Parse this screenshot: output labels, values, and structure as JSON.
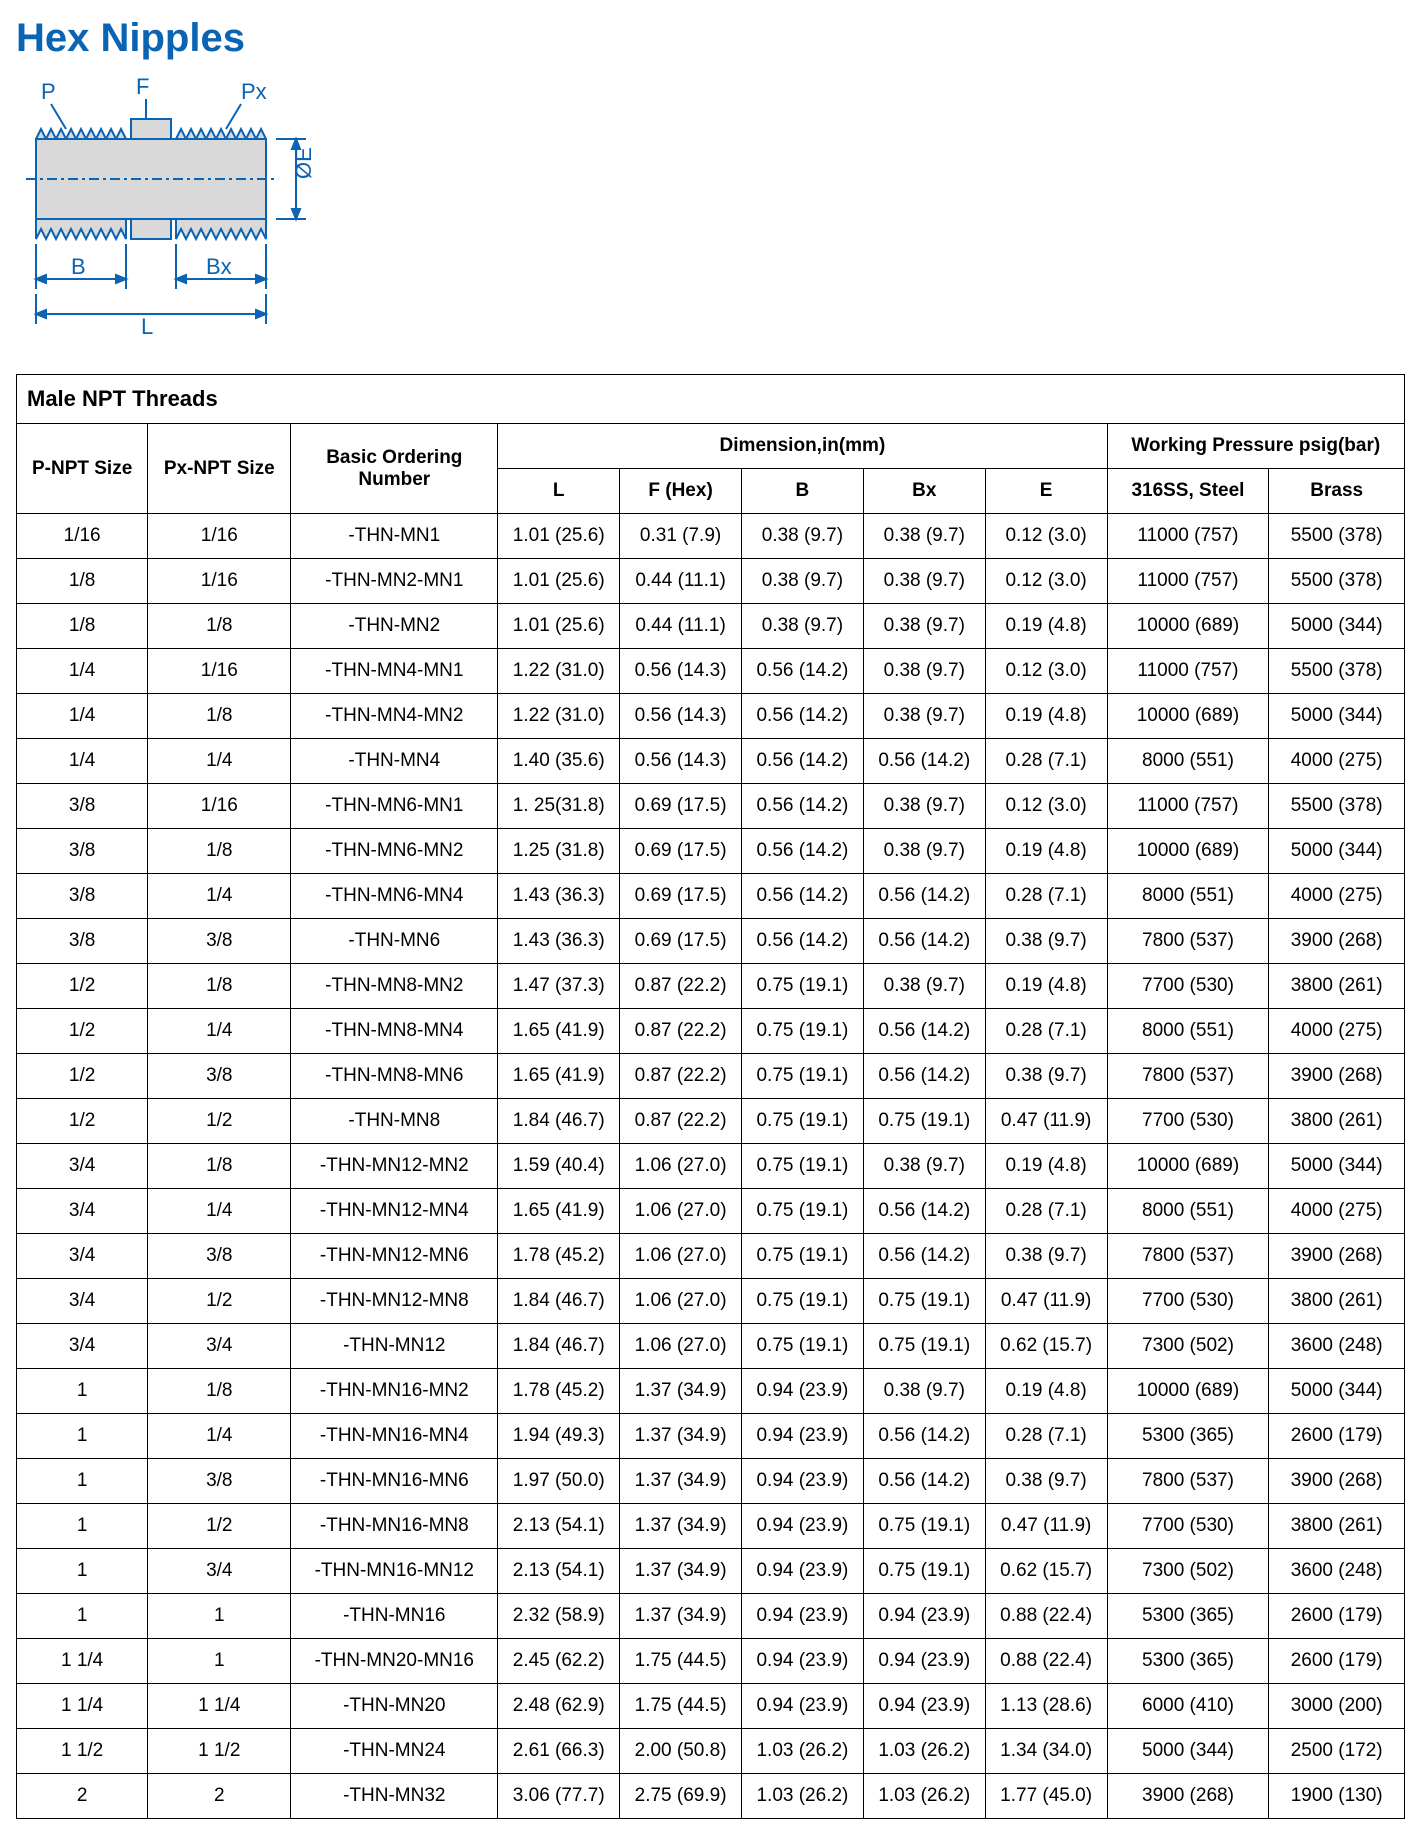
{
  "title": "Hex Nipples",
  "diagram": {
    "labels": {
      "P": "P",
      "F": "F",
      "Px": "Px",
      "B": "B",
      "Bx": "Bx",
      "L": "L",
      "E": "ØE"
    },
    "body_fill": "#d9d9d9",
    "line_color": "#0b63b4",
    "thread_color": "#0b63b4",
    "label_color": "#0b63b4"
  },
  "table": {
    "section_title": "Male NPT Threads",
    "headers": {
      "p_npt": "P-NPT Size",
      "px_npt": "Px-NPT Size",
      "ordering": "Basic Ordering Number",
      "dim_group": "Dimension,in(mm)",
      "L": "L",
      "F": "F (Hex)",
      "B": "B",
      "Bx": "Bx",
      "E": "E",
      "wp_group": "Working Pressure psig(bar)",
      "wp_ss": "316SS, Steel",
      "wp_brass": "Brass"
    },
    "rows": [
      {
        "p": "1/16",
        "px": "1/16",
        "ord": "-THN-MN1",
        "L": "1.01 (25.6)",
        "F": "0.31 (7.9)",
        "B": "0.38 (9.7)",
        "Bx": "0.38 (9.7)",
        "E": "0.12 (3.0)",
        "ss": "11000 (757)",
        "br": "5500 (378)"
      },
      {
        "p": "1/8",
        "px": "1/16",
        "ord": "-THN-MN2-MN1",
        "L": "1.01 (25.6)",
        "F": "0.44 (11.1)",
        "B": "0.38 (9.7)",
        "Bx": "0.38 (9.7)",
        "E": "0.12 (3.0)",
        "ss": "11000 (757)",
        "br": "5500 (378)"
      },
      {
        "p": "1/8",
        "px": "1/8",
        "ord": "-THN-MN2",
        "L": "1.01 (25.6)",
        "F": "0.44 (11.1)",
        "B": "0.38 (9.7)",
        "Bx": "0.38 (9.7)",
        "E": "0.19 (4.8)",
        "ss": "10000 (689)",
        "br": "5000 (344)"
      },
      {
        "p": "1/4",
        "px": "1/16",
        "ord": "-THN-MN4-MN1",
        "L": "1.22 (31.0)",
        "F": "0.56 (14.3)",
        "B": "0.56 (14.2)",
        "Bx": "0.38 (9.7)",
        "E": "0.12 (3.0)",
        "ss": "11000 (757)",
        "br": "5500 (378)"
      },
      {
        "p": "1/4",
        "px": "1/8",
        "ord": "-THN-MN4-MN2",
        "L": "1.22 (31.0)",
        "F": "0.56 (14.3)",
        "B": "0.56 (14.2)",
        "Bx": "0.38 (9.7)",
        "E": "0.19 (4.8)",
        "ss": "10000 (689)",
        "br": "5000 (344)"
      },
      {
        "p": "1/4",
        "px": "1/4",
        "ord": "-THN-MN4",
        "L": "1.40 (35.6)",
        "F": "0.56 (14.3)",
        "B": "0.56 (14.2)",
        "Bx": "0.56 (14.2)",
        "E": "0.28 (7.1)",
        "ss": "8000 (551)",
        "br": "4000 (275)"
      },
      {
        "p": "3/8",
        "px": "1/16",
        "ord": "-THN-MN6-MN1",
        "L": "1. 25(31.8)",
        "F": "0.69 (17.5)",
        "B": "0.56 (14.2)",
        "Bx": "0.38 (9.7)",
        "E": "0.12 (3.0)",
        "ss": "11000 (757)",
        "br": "5500 (378)"
      },
      {
        "p": "3/8",
        "px": "1/8",
        "ord": "-THN-MN6-MN2",
        "L": "1.25 (31.8)",
        "F": "0.69 (17.5)",
        "B": "0.56 (14.2)",
        "Bx": "0.38 (9.7)",
        "E": "0.19 (4.8)",
        "ss": "10000 (689)",
        "br": "5000 (344)"
      },
      {
        "p": "3/8",
        "px": "1/4",
        "ord": "-THN-MN6-MN4",
        "L": "1.43 (36.3)",
        "F": "0.69 (17.5)",
        "B": "0.56 (14.2)",
        "Bx": "0.56 (14.2)",
        "E": "0.28 (7.1)",
        "ss": "8000 (551)",
        "br": "4000 (275)"
      },
      {
        "p": "3/8",
        "px": "3/8",
        "ord": "-THN-MN6",
        "L": "1.43 (36.3)",
        "F": "0.69 (17.5)",
        "B": "0.56 (14.2)",
        "Bx": "0.56 (14.2)",
        "E": "0.38 (9.7)",
        "ss": "7800 (537)",
        "br": "3900 (268)"
      },
      {
        "p": "1/2",
        "px": "1/8",
        "ord": "-THN-MN8-MN2",
        "L": "1.47 (37.3)",
        "F": "0.87 (22.2)",
        "B": "0.75 (19.1)",
        "Bx": "0.38 (9.7)",
        "E": "0.19 (4.8)",
        "ss": "7700 (530)",
        "br": "3800 (261)"
      },
      {
        "p": "1/2",
        "px": "1/4",
        "ord": "-THN-MN8-MN4",
        "L": "1.65 (41.9)",
        "F": "0.87 (22.2)",
        "B": "0.75 (19.1)",
        "Bx": "0.56 (14.2)",
        "E": "0.28 (7.1)",
        "ss": "8000 (551)",
        "br": "4000 (275)"
      },
      {
        "p": "1/2",
        "px": "3/8",
        "ord": "-THN-MN8-MN6",
        "L": "1.65 (41.9)",
        "F": "0.87 (22.2)",
        "B": "0.75 (19.1)",
        "Bx": "0.56 (14.2)",
        "E": "0.38 (9.7)",
        "ss": "7800 (537)",
        "br": "3900 (268)"
      },
      {
        "p": "1/2",
        "px": "1/2",
        "ord": "-THN-MN8",
        "L": "1.84 (46.7)",
        "F": "0.87 (22.2)",
        "B": "0.75 (19.1)",
        "Bx": "0.75 (19.1)",
        "E": "0.47 (11.9)",
        "ss": "7700 (530)",
        "br": "3800 (261)"
      },
      {
        "p": "3/4",
        "px": "1/8",
        "ord": "-THN-MN12-MN2",
        "L": "1.59 (40.4)",
        "F": "1.06 (27.0)",
        "B": "0.75 (19.1)",
        "Bx": "0.38 (9.7)",
        "E": "0.19 (4.8)",
        "ss": "10000 (689)",
        "br": "5000 (344)"
      },
      {
        "p": "3/4",
        "px": "1/4",
        "ord": "-THN-MN12-MN4",
        "L": "1.65 (41.9)",
        "F": "1.06 (27.0)",
        "B": "0.75 (19.1)",
        "Bx": "0.56 (14.2)",
        "E": "0.28 (7.1)",
        "ss": "8000 (551)",
        "br": "4000 (275)"
      },
      {
        "p": "3/4",
        "px": "3/8",
        "ord": "-THN-MN12-MN6",
        "L": "1.78 (45.2)",
        "F": "1.06 (27.0)",
        "B": "0.75 (19.1)",
        "Bx": "0.56 (14.2)",
        "E": "0.38 (9.7)",
        "ss": "7800 (537)",
        "br": "3900 (268)"
      },
      {
        "p": "3/4",
        "px": "1/2",
        "ord": "-THN-MN12-MN8",
        "L": "1.84 (46.7)",
        "F": "1.06 (27.0)",
        "B": "0.75 (19.1)",
        "Bx": "0.75 (19.1)",
        "E": "0.47 (11.9)",
        "ss": "7700 (530)",
        "br": "3800 (261)"
      },
      {
        "p": "3/4",
        "px": "3/4",
        "ord": "-THN-MN12",
        "L": "1.84 (46.7)",
        "F": "1.06 (27.0)",
        "B": "0.75 (19.1)",
        "Bx": "0.75 (19.1)",
        "E": "0.62 (15.7)",
        "ss": "7300 (502)",
        "br": "3600 (248)"
      },
      {
        "p": "1",
        "px": "1/8",
        "ord": "-THN-MN16-MN2",
        "L": "1.78 (45.2)",
        "F": "1.37 (34.9)",
        "B": "0.94 (23.9)",
        "Bx": "0.38 (9.7)",
        "E": "0.19 (4.8)",
        "ss": "10000 (689)",
        "br": "5000 (344)"
      },
      {
        "p": "1",
        "px": "1/4",
        "ord": "-THN-MN16-MN4",
        "L": "1.94 (49.3)",
        "F": "1.37 (34.9)",
        "B": "0.94 (23.9)",
        "Bx": "0.56 (14.2)",
        "E": "0.28 (7.1)",
        "ss": "5300 (365)",
        "br": "2600 (179)"
      },
      {
        "p": "1",
        "px": "3/8",
        "ord": "-THN-MN16-MN6",
        "L": "1.97 (50.0)",
        "F": "1.37 (34.9)",
        "B": "0.94 (23.9)",
        "Bx": "0.56 (14.2)",
        "E": "0.38 (9.7)",
        "ss": "7800 (537)",
        "br": "3900 (268)"
      },
      {
        "p": "1",
        "px": "1/2",
        "ord": "-THN-MN16-MN8",
        "L": "2.13 (54.1)",
        "F": "1.37 (34.9)",
        "B": "0.94 (23.9)",
        "Bx": "0.75 (19.1)",
        "E": "0.47 (11.9)",
        "ss": "7700 (530)",
        "br": "3800 (261)"
      },
      {
        "p": "1",
        "px": "3/4",
        "ord": "-THN-MN16-MN12",
        "L": "2.13 (54.1)",
        "F": "1.37 (34.9)",
        "B": "0.94 (23.9)",
        "Bx": "0.75 (19.1)",
        "E": "0.62 (15.7)",
        "ss": "7300 (502)",
        "br": "3600 (248)"
      },
      {
        "p": "1",
        "px": "1",
        "ord": "-THN-MN16",
        "L": "2.32 (58.9)",
        "F": "1.37 (34.9)",
        "B": "0.94 (23.9)",
        "Bx": "0.94 (23.9)",
        "E": "0.88 (22.4)",
        "ss": "5300 (365)",
        "br": "2600 (179)"
      },
      {
        "p": "1 1/4",
        "px": "1",
        "ord": "-THN-MN20-MN16",
        "L": "2.45 (62.2)",
        "F": "1.75 (44.5)",
        "B": "0.94 (23.9)",
        "Bx": "0.94 (23.9)",
        "E": "0.88 (22.4)",
        "ss": "5300 (365)",
        "br": "2600 (179)"
      },
      {
        "p": "1 1/4",
        "px": "1 1/4",
        "ord": "-THN-MN20",
        "L": "2.48 (62.9)",
        "F": "1.75 (44.5)",
        "B": "0.94 (23.9)",
        "Bx": "0.94 (23.9)",
        "E": "1.13 (28.6)",
        "ss": "6000 (410)",
        "br": "3000 (200)"
      },
      {
        "p": "1 1/2",
        "px": "1 1/2",
        "ord": "-THN-MN24",
        "L": "2.61 (66.3)",
        "F": "2.00 (50.8)",
        "B": "1.03 (26.2)",
        "Bx": "1.03 (26.2)",
        "E": "1.34 (34.0)",
        "ss": "5000 (344)",
        "br": "2500 (172)"
      },
      {
        "p": "2",
        "px": "2",
        "ord": "-THN-MN32",
        "L": "3.06 (77.7)",
        "F": "2.75 (69.9)",
        "B": "1.03 (26.2)",
        "Bx": "1.03 (26.2)",
        "E": "1.77 (45.0)",
        "ss": "3900 (268)",
        "br": "1900 (130)"
      }
    ]
  }
}
